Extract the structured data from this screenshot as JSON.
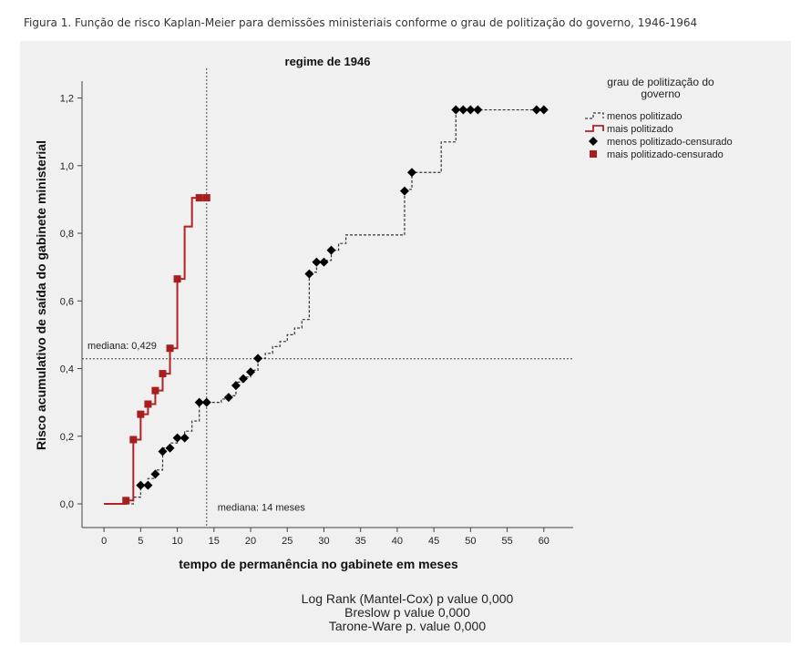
{
  "caption": "Figura 1. Função de risco Kaplan-Meier para demissões ministeriais conforme o grau de politização do governo, 1946-1964",
  "chart_data": {
    "type": "line",
    "title": "regime de 1946",
    "xlabel": "tempo de permanência no gabinete em meses",
    "ylabel": "Risco acumulativo de saída do gabinete ministerial",
    "xlim": [
      -3,
      64
    ],
    "ylim": [
      -0.07,
      1.25
    ],
    "xticks": [
      0,
      5,
      10,
      15,
      20,
      25,
      30,
      35,
      40,
      45,
      50,
      55,
      60
    ],
    "yticks": [
      0.0,
      0.2,
      0.4,
      0.6,
      0.8,
      1.0,
      1.2
    ],
    "ytick_labels": [
      "0,0",
      "0,2",
      "0,4",
      "0,6",
      "0,8",
      "1,0",
      "1,2"
    ],
    "grid": false,
    "legend": {
      "title": "grau de politização do governo",
      "position": "top-right",
      "entries": [
        {
          "label": "menos politizado",
          "kind": "step",
          "color": "#333333",
          "dashed": true
        },
        {
          "label": "mais politizado",
          "kind": "step",
          "color": "#b22222",
          "dashed": false
        },
        {
          "label": "menos politizado-censurado",
          "kind": "diamond",
          "color": "#000000"
        },
        {
          "label": "mais politizado-censurado",
          "kind": "square",
          "color": "#a81e1e"
        }
      ]
    },
    "series": [
      {
        "name": "menos politizado",
        "color": "#333333",
        "dashed": true,
        "steps": [
          [
            0,
            0.0
          ],
          [
            4,
            0.02
          ],
          [
            5,
            0.055
          ],
          [
            6,
            0.075
          ],
          [
            7,
            0.1
          ],
          [
            8,
            0.165
          ],
          [
            9,
            0.18
          ],
          [
            10,
            0.195
          ],
          [
            11,
            0.215
          ],
          [
            12,
            0.245
          ],
          [
            13,
            0.3
          ],
          [
            14,
            0.3
          ],
          [
            15,
            0.3
          ],
          [
            16,
            0.31
          ],
          [
            17,
            0.32
          ],
          [
            18,
            0.36
          ],
          [
            19,
            0.375
          ],
          [
            20,
            0.395
          ],
          [
            21,
            0.43
          ],
          [
            22,
            0.445
          ],
          [
            23,
            0.465
          ],
          [
            24,
            0.48
          ],
          [
            25,
            0.5
          ],
          [
            26,
            0.52
          ],
          [
            27,
            0.545
          ],
          [
            28,
            0.685
          ],
          [
            29,
            0.715
          ],
          [
            30,
            0.72
          ],
          [
            31,
            0.75
          ],
          [
            32,
            0.77
          ],
          [
            33,
            0.795
          ],
          [
            41,
            0.93
          ],
          [
            42,
            0.98
          ],
          [
            46,
            1.07
          ],
          [
            48,
            1.165
          ],
          [
            60,
            1.165
          ]
        ],
        "censored_x": [
          5,
          6,
          7,
          8,
          9,
          10,
          11,
          13,
          14,
          17,
          18,
          19,
          20,
          21,
          28,
          29,
          30,
          31,
          41,
          42,
          48,
          49,
          50,
          51,
          59,
          60
        ],
        "censored_y": [
          0.055,
          0.055,
          0.088,
          0.155,
          0.165,
          0.195,
          0.195,
          0.3,
          0.3,
          0.315,
          0.35,
          0.37,
          0.39,
          0.43,
          0.68,
          0.715,
          0.715,
          0.75,
          0.925,
          0.98,
          1.165,
          1.165,
          1.165,
          1.165,
          1.165,
          1.165
        ]
      },
      {
        "name": "mais politizado",
        "color": "#b22222",
        "dashed": false,
        "steps": [
          [
            0,
            0.0
          ],
          [
            3,
            0.01
          ],
          [
            4,
            0.19
          ],
          [
            5,
            0.265
          ],
          [
            6,
            0.295
          ],
          [
            7,
            0.335
          ],
          [
            8,
            0.385
          ],
          [
            9,
            0.46
          ],
          [
            10,
            0.665
          ],
          [
            11,
            0.82
          ],
          [
            12,
            0.905
          ],
          [
            14,
            0.905
          ]
        ],
        "censored_x": [
          3,
          4,
          5,
          6,
          7,
          8,
          9,
          10,
          13,
          14
        ],
        "censored_y": [
          0.01,
          0.19,
          0.265,
          0.295,
          0.335,
          0.385,
          0.46,
          0.665,
          0.905,
          0.905
        ]
      }
    ],
    "reference_lines": {
      "median_y": 0.429,
      "median_x": 14,
      "median_y_label": "mediana: 0,429",
      "median_x_label": "mediana: 14 meses"
    }
  },
  "stats": [
    "Log Rank (Mantel-Cox) p value 0,000",
    "Breslow p value 0,000",
    "Tarone-Ware p. value 0,000"
  ]
}
